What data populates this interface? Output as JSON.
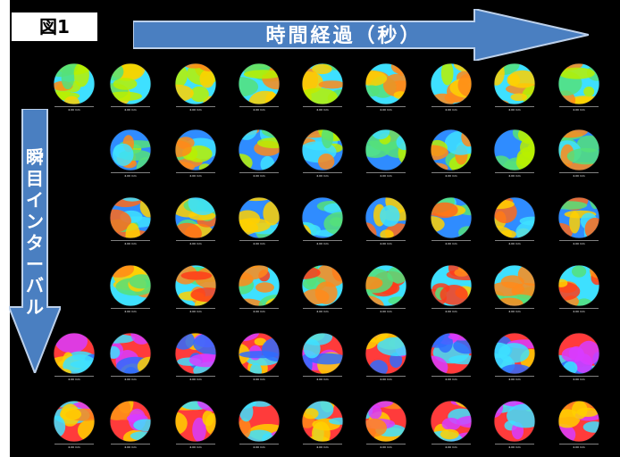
{
  "figure_label": "図1",
  "time_axis_label": "時間経過（秒）",
  "blink_axis_label": "瞬目インターバル",
  "scale_label": "4.00 mm",
  "colors": {
    "background": "#000000",
    "arrow_fill": "#4a7fc1",
    "arrow_stroke": "#bcd0ea"
  },
  "grid": {
    "rows": 6,
    "columns": 9,
    "row_starts": [
      0,
      1,
      1,
      1,
      0,
      0
    ],
    "row_palettes": [
      [
        "#3ee0ff",
        "#55e07a",
        "#b8f000",
        "#ffd000",
        "#ff8a1a"
      ],
      [
        "#2f8cff",
        "#3ee0ff",
        "#55e07a",
        "#b8f000",
        "#ff8a1a"
      ],
      [
        "#2f8cff",
        "#3ee0ff",
        "#55e07a",
        "#ffd000",
        "#ff6a1a"
      ],
      [
        "#3ee0ff",
        "#55e07a",
        "#ffd000",
        "#ff8a1a",
        "#ff3b1a"
      ],
      [
        "#ff3b3b",
        "#ffd000",
        "#3ee0ff",
        "#2f6cff",
        "#d83cff"
      ],
      [
        "#ff3b3b",
        "#ff8a1a",
        "#ffd000",
        "#3ee0ff",
        "#d83cff"
      ]
    ]
  }
}
